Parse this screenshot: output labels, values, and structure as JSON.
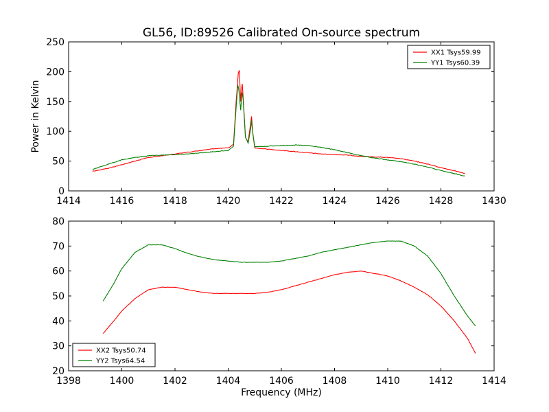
{
  "title": "GL56, ID:89526 Calibrated On-source spectrum",
  "colors": {
    "red": "#ff0000",
    "green": "#008000"
  },
  "chart_data": [
    {
      "type": "line",
      "ylabel": "Power in Kelvin",
      "xlabel": "",
      "xlim": [
        1414,
        1430
      ],
      "ylim": [
        0,
        250
      ],
      "xticks": [
        "1414",
        "1416",
        "1418",
        "1420",
        "1422",
        "1424",
        "1426",
        "1428",
        "1430"
      ],
      "yticks": [
        "0",
        "50",
        "100",
        "150",
        "200",
        "250"
      ],
      "legend_position": "top-right",
      "series": [
        {
          "name": "XX1 Tsys59.99",
          "color": "#ff0000",
          "points": [
            [
              1414.9,
              33
            ],
            [
              1415.5,
              38
            ],
            [
              1416.0,
              44
            ],
            [
              1416.5,
              50
            ],
            [
              1417.0,
              56
            ],
            [
              1417.5,
              59
            ],
            [
              1418.0,
              62
            ],
            [
              1418.5,
              65
            ],
            [
              1419.0,
              68
            ],
            [
              1419.5,
              71
            ],
            [
              1420.0,
              72
            ],
            [
              1420.2,
              78
            ],
            [
              1420.3,
              150
            ],
            [
              1420.38,
              198
            ],
            [
              1420.42,
              202
            ],
            [
              1420.47,
              150
            ],
            [
              1420.5,
              170
            ],
            [
              1420.53,
              180
            ],
            [
              1420.58,
              145
            ],
            [
              1420.65,
              90
            ],
            [
              1420.75,
              82
            ],
            [
              1420.85,
              115
            ],
            [
              1420.88,
              125
            ],
            [
              1420.92,
              100
            ],
            [
              1421.0,
              72
            ],
            [
              1421.5,
              70
            ],
            [
              1422.0,
              68
            ],
            [
              1422.5,
              66
            ],
            [
              1423.0,
              64
            ],
            [
              1423.5,
              62
            ],
            [
              1424.0,
              61
            ],
            [
              1424.5,
              60
            ],
            [
              1425.0,
              58
            ],
            [
              1425.5,
              57
            ],
            [
              1426.0,
              56
            ],
            [
              1426.5,
              54
            ],
            [
              1427.0,
              50
            ],
            [
              1427.5,
              45
            ],
            [
              1428.0,
              39
            ],
            [
              1428.5,
              34
            ],
            [
              1428.9,
              29
            ]
          ]
        },
        {
          "name": "YY1 Tsys60.39",
          "color": "#008000",
          "points": [
            [
              1414.9,
              36
            ],
            [
              1415.5,
              45
            ],
            [
              1416.0,
              52
            ],
            [
              1416.5,
              56
            ],
            [
              1417.0,
              59
            ],
            [
              1417.5,
              60
            ],
            [
              1418.0,
              61
            ],
            [
              1418.5,
              62
            ],
            [
              1419.0,
              64
            ],
            [
              1419.5,
              66
            ],
            [
              1420.0,
              68
            ],
            [
              1420.2,
              75
            ],
            [
              1420.3,
              140
            ],
            [
              1420.36,
              178
            ],
            [
              1420.4,
              170
            ],
            [
              1420.47,
              135
            ],
            [
              1420.52,
              165
            ],
            [
              1420.56,
              155
            ],
            [
              1420.65,
              90
            ],
            [
              1420.75,
              80
            ],
            [
              1420.85,
              105
            ],
            [
              1420.88,
              118
            ],
            [
              1420.93,
              95
            ],
            [
              1421.0,
              74
            ],
            [
              1421.5,
              75
            ],
            [
              1422.0,
              76
            ],
            [
              1422.5,
              77
            ],
            [
              1423.0,
              76
            ],
            [
              1423.5,
              73
            ],
            [
              1424.0,
              69
            ],
            [
              1424.5,
              64
            ],
            [
              1425.0,
              59
            ],
            [
              1425.5,
              55
            ],
            [
              1426.0,
              52
            ],
            [
              1426.5,
              49
            ],
            [
              1427.0,
              45
            ],
            [
              1427.5,
              40
            ],
            [
              1428.0,
              34
            ],
            [
              1428.5,
              29
            ],
            [
              1428.9,
              25
            ]
          ]
        }
      ]
    },
    {
      "type": "line",
      "ylabel": "",
      "xlabel": "Frequency (MHz)",
      "xlim": [
        1398,
        1414
      ],
      "ylim": [
        20,
        80
      ],
      "xticks": [
        "1398",
        "1400",
        "1402",
        "1404",
        "1406",
        "1408",
        "1410",
        "1412",
        "1414"
      ],
      "yticks": [
        "20",
        "30",
        "40",
        "50",
        "60",
        "70",
        "80"
      ],
      "legend_position": "bottom-left",
      "series": [
        {
          "name": "XX2 Tsys50.74",
          "color": "#ff0000",
          "points": [
            [
              1399.3,
              35
            ],
            [
              1399.7,
              40
            ],
            [
              1400.0,
              44
            ],
            [
              1400.5,
              49
            ],
            [
              1401.0,
              52.5
            ],
            [
              1401.5,
              53.5
            ],
            [
              1402.0,
              53.5
            ],
            [
              1402.5,
              52.5
            ],
            [
              1403.0,
              51.5
            ],
            [
              1403.5,
              51
            ],
            [
              1404.0,
              51
            ],
            [
              1404.5,
              51
            ],
            [
              1405.0,
              51
            ],
            [
              1405.5,
              51.5
            ],
            [
              1406.0,
              52.5
            ],
            [
              1406.5,
              54
            ],
            [
              1407.0,
              55.5
            ],
            [
              1407.5,
              57
            ],
            [
              1408.0,
              58.5
            ],
            [
              1408.5,
              59.5
            ],
            [
              1409.0,
              60
            ],
            [
              1409.5,
              59
            ],
            [
              1410.0,
              58
            ],
            [
              1410.5,
              56
            ],
            [
              1411.0,
              53.5
            ],
            [
              1411.5,
              50.5
            ],
            [
              1412.0,
              46
            ],
            [
              1412.5,
              40
            ],
            [
              1413.0,
              33
            ],
            [
              1413.3,
              27
            ]
          ]
        },
        {
          "name": "YY2 Tsys64.54",
          "color": "#008000",
          "points": [
            [
              1399.3,
              48
            ],
            [
              1399.7,
              55
            ],
            [
              1400.0,
              61
            ],
            [
              1400.5,
              67.5
            ],
            [
              1401.0,
              70.5
            ],
            [
              1401.5,
              70.5
            ],
            [
              1402.0,
              69
            ],
            [
              1402.5,
              67
            ],
            [
              1403.0,
              65.5
            ],
            [
              1403.5,
              64.5
            ],
            [
              1404.0,
              64
            ],
            [
              1404.5,
              63.5
            ],
            [
              1405.0,
              63.5
            ],
            [
              1405.5,
              63.5
            ],
            [
              1406.0,
              64
            ],
            [
              1406.5,
              65
            ],
            [
              1407.0,
              66
            ],
            [
              1407.5,
              67.5
            ],
            [
              1408.0,
              68.5
            ],
            [
              1408.5,
              69.5
            ],
            [
              1409.0,
              70.5
            ],
            [
              1409.5,
              71.5
            ],
            [
              1410.0,
              72
            ],
            [
              1410.5,
              72
            ],
            [
              1411.0,
              70
            ],
            [
              1411.5,
              66
            ],
            [
              1412.0,
              59
            ],
            [
              1412.5,
              50
            ],
            [
              1413.0,
              42
            ],
            [
              1413.3,
              38
            ]
          ]
        }
      ]
    }
  ]
}
